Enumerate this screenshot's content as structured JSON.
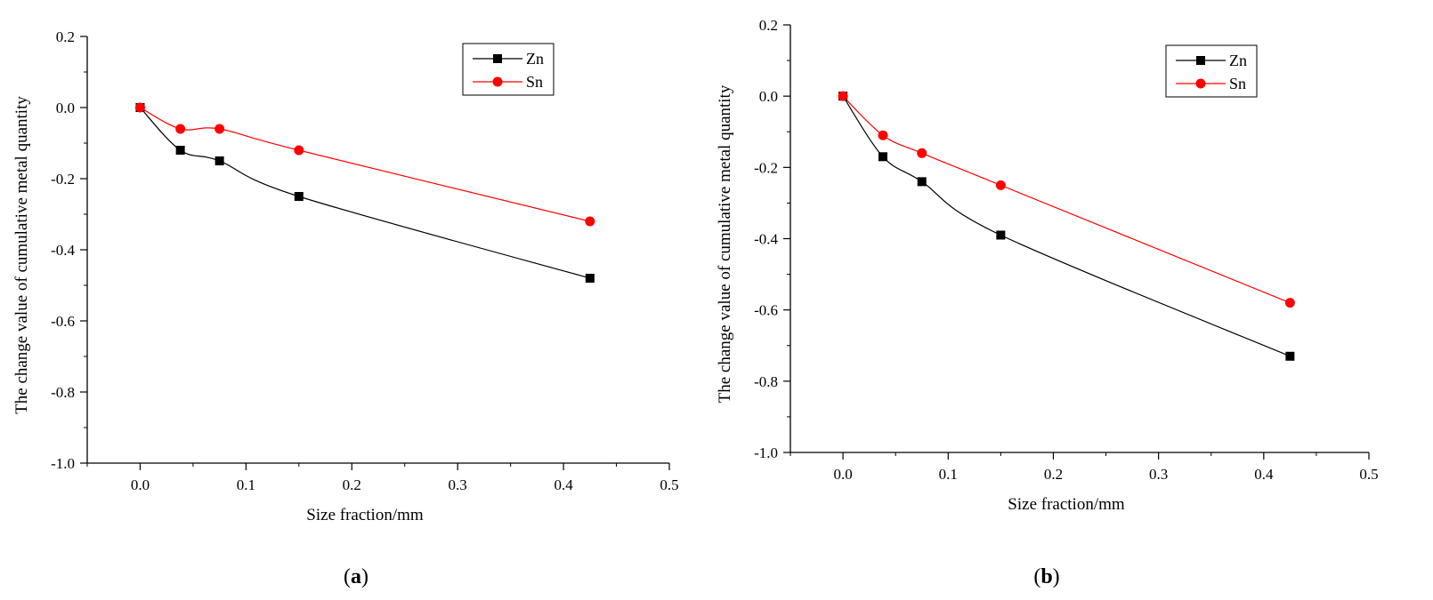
{
  "chart_data": [
    {
      "type": "line",
      "panel_label": "a",
      "xlabel": "Size fraction/mm",
      "ylabel": "The change value of cumulative metal quantity",
      "xlim": [
        -0.05,
        0.5
      ],
      "ylim": [
        -1.0,
        0.2
      ],
      "xticks": [
        0.0,
        0.1,
        0.2,
        0.3,
        0.4,
        0.5
      ],
      "xtick_labels": [
        "0.0",
        "0.1",
        "0.2",
        "0.3",
        "0.4",
        "0.5"
      ],
      "yticks": [
        -1.0,
        -0.8,
        -0.6,
        -0.4,
        -0.2,
        0.0,
        0.2
      ],
      "ytick_labels": [
        "-1.0",
        "-0.8",
        "-0.6",
        "-0.4",
        "-0.2",
        "0.0",
        "0.2"
      ],
      "legend_position": "top-right",
      "series": [
        {
          "name": "Zn",
          "color": "#000000",
          "marker": "square",
          "x": [
            0.0,
            0.038,
            0.075,
            0.15,
            0.425
          ],
          "values": [
            0.0,
            -0.12,
            -0.15,
            -0.25,
            -0.48
          ]
        },
        {
          "name": "Sn",
          "color": "#ff0000",
          "marker": "circle",
          "x": [
            0.0,
            0.038,
            0.075,
            0.15,
            0.425
          ],
          "values": [
            0.0,
            -0.06,
            -0.06,
            -0.12,
            -0.32
          ]
        }
      ]
    },
    {
      "type": "line",
      "panel_label": "b",
      "xlabel": "Size fraction/mm",
      "ylabel": "The change value of cumulative metal quantity",
      "xlim": [
        -0.05,
        0.5
      ],
      "ylim": [
        -1.0,
        0.2
      ],
      "xticks": [
        0.0,
        0.1,
        0.2,
        0.3,
        0.4,
        0.5
      ],
      "xtick_labels": [
        "0.0",
        "0.1",
        "0.2",
        "0.3",
        "0.4",
        "0.5"
      ],
      "yticks": [
        -1.0,
        -0.8,
        -0.6,
        -0.4,
        -0.2,
        0.0,
        0.2
      ],
      "ytick_labels": [
        "-1.0",
        "-0.8",
        "-0.6",
        "-0.4",
        "-0.2",
        "0.0",
        "0.2"
      ],
      "legend_position": "top-right",
      "series": [
        {
          "name": "Zn",
          "color": "#000000",
          "marker": "square",
          "x": [
            0.0,
            0.038,
            0.075,
            0.15,
            0.425
          ],
          "values": [
            0.0,
            -0.17,
            -0.24,
            -0.39,
            -0.73
          ]
        },
        {
          "name": "Sn",
          "color": "#ff0000",
          "marker": "circle",
          "x": [
            0.0,
            0.038,
            0.075,
            0.15,
            0.425
          ],
          "values": [
            0.0,
            -0.11,
            -0.16,
            -0.25,
            -0.58
          ]
        }
      ]
    }
  ]
}
